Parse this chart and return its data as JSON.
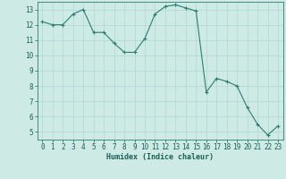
{
  "x": [
    0,
    1,
    2,
    3,
    4,
    5,
    6,
    7,
    8,
    9,
    10,
    11,
    12,
    13,
    14,
    15,
    16,
    17,
    18,
    19,
    20,
    21,
    22,
    23
  ],
  "y": [
    12.2,
    12.0,
    12.0,
    12.7,
    13.0,
    11.5,
    11.5,
    10.8,
    10.2,
    10.2,
    11.1,
    12.7,
    13.2,
    13.3,
    13.1,
    12.9,
    7.6,
    8.5,
    8.3,
    8.0,
    6.6,
    5.5,
    4.8,
    5.4
  ],
  "line_color": "#2d7d6f",
  "marker": "+",
  "bg_color": "#cdeae5",
  "grid_color": "#b0d8d2",
  "xlabel": "Humidex (Indice chaleur)",
  "ylabel_ticks": [
    5,
    6,
    7,
    8,
    9,
    10,
    11,
    12,
    13
  ],
  "xlim": [
    -0.5,
    23.5
  ],
  "ylim": [
    4.5,
    13.5
  ],
  "tick_color": "#2d7d6f",
  "font_color": "#1a5f55",
  "label_fontsize": 6.0,
  "tick_fontsize": 5.5
}
